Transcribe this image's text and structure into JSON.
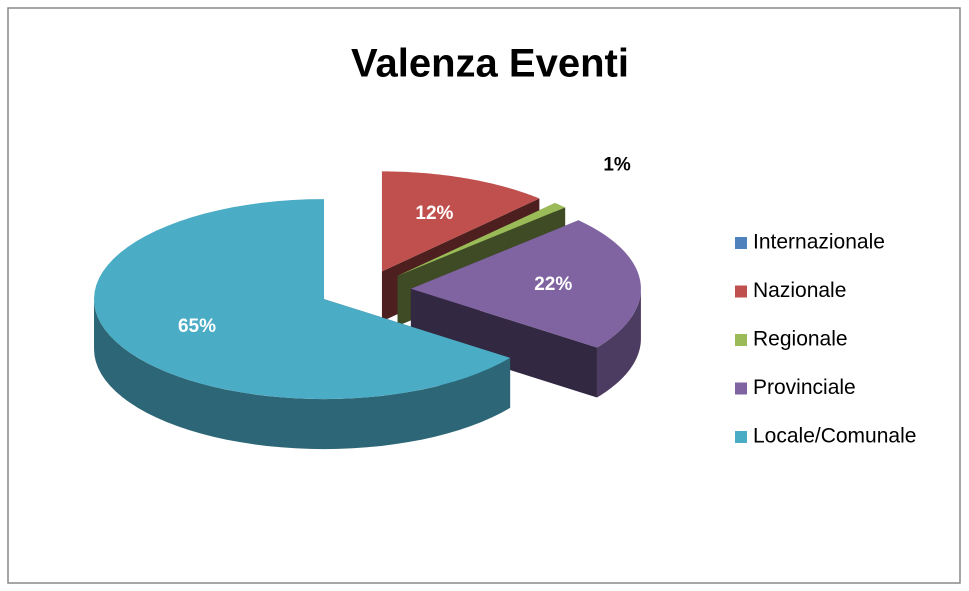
{
  "chart_data": {
    "type": "pie",
    "title": "Valenza Eventi",
    "categories": [
      "Internazionale",
      "Nazionale",
      "Regionale",
      "Provinciale",
      "Locale/Comunale"
    ],
    "values": [
      0,
      12,
      1,
      22,
      65
    ],
    "value_labels": [
      null,
      "12%",
      "1%",
      "22%",
      "65%"
    ],
    "colors": [
      "#4f81bd",
      "#c0504d",
      "#9bbb59",
      "#8064a2",
      "#4bacc6"
    ],
    "legend": "right"
  }
}
